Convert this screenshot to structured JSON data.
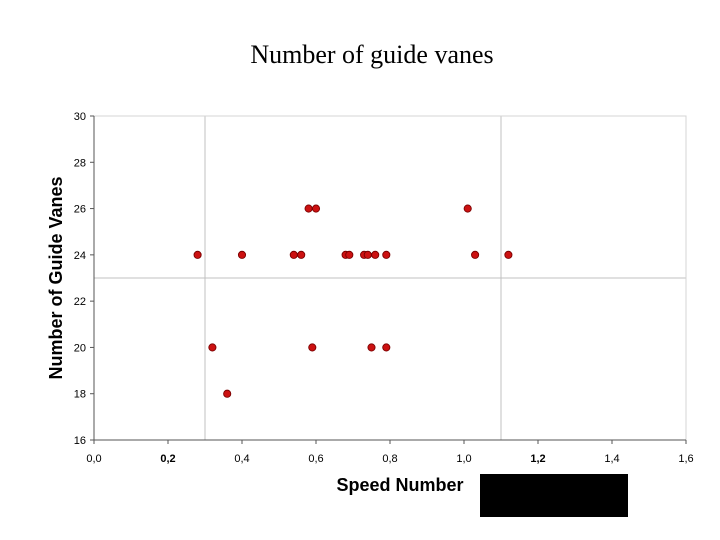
{
  "slide": {
    "title": "Number of guide vanes"
  },
  "chart_data": {
    "type": "scatter",
    "title": "",
    "xlabel": "Speed Number",
    "ylabel": "Number of Guide Vanes",
    "xlim": [
      0.0,
      1.6
    ],
    "ylim": [
      16,
      30
    ],
    "x_ticks": [
      "0,0",
      "0,2",
      "0,4",
      "0,6",
      "0,8",
      "1,0",
      "1,2",
      "1,4",
      "1,6"
    ],
    "y_ticks": [
      "16",
      "18",
      "20",
      "22",
      "24",
      "26",
      "28",
      "30"
    ],
    "bold_x_ticks": [
      "0,2",
      "1,2"
    ],
    "reference_lines": {
      "x": [
        0.3,
        1.1
      ],
      "y": [
        23
      ]
    },
    "marker_color": "#cc1111",
    "points": [
      {
        "x": 0.28,
        "y": 24
      },
      {
        "x": 0.32,
        "y": 20
      },
      {
        "x": 0.36,
        "y": 18
      },
      {
        "x": 0.4,
        "y": 24
      },
      {
        "x": 0.54,
        "y": 24
      },
      {
        "x": 0.56,
        "y": 24
      },
      {
        "x": 0.58,
        "y": 26
      },
      {
        "x": 0.6,
        "y": 26
      },
      {
        "x": 0.59,
        "y": 20
      },
      {
        "x": 0.68,
        "y": 24
      },
      {
        "x": 0.69,
        "y": 24
      },
      {
        "x": 0.73,
        "y": 24
      },
      {
        "x": 0.74,
        "y": 24
      },
      {
        "x": 0.76,
        "y": 24
      },
      {
        "x": 0.75,
        "y": 20
      },
      {
        "x": 0.79,
        "y": 24
      },
      {
        "x": 0.79,
        "y": 20
      },
      {
        "x": 1.01,
        "y": 26
      },
      {
        "x": 1.03,
        "y": 24
      },
      {
        "x": 1.12,
        "y": 24
      }
    ]
  }
}
